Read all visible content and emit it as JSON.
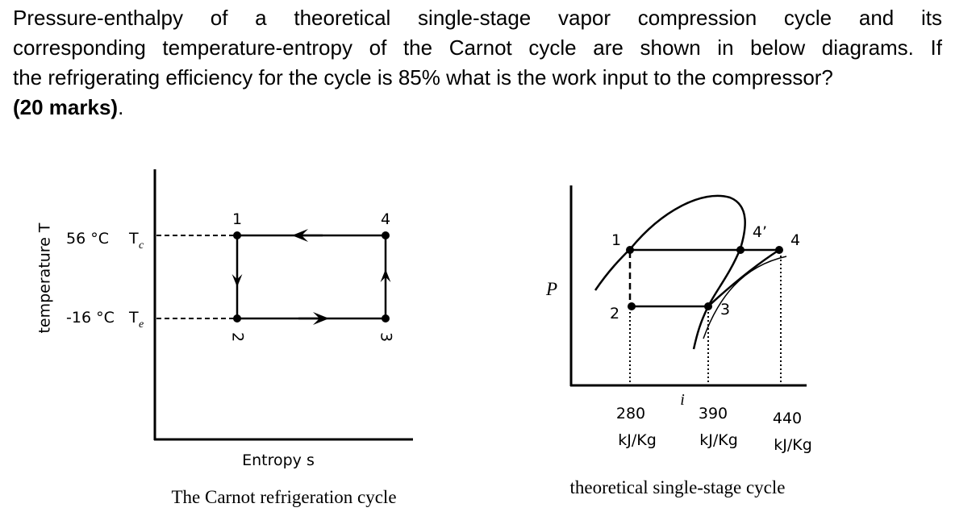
{
  "question": {
    "lines": [
      "Pressure-enthalpy of a theoretical single-stage vapor compression cycle and its",
      "corresponding temperature-entropy of the Carnot cycle are shown in below diagrams. If",
      "the refrigerating efficiency for the cycle is 85% what is the work input to the compressor?"
    ],
    "marks": "(20 marks)",
    "end": "."
  },
  "carnot_diagram": {
    "y_axis_label": "temperature T",
    "x_axis_label": "Entropy s",
    "caption": "The Carnot refrigeration cycle",
    "condensing": {
      "temperature": "56 °C",
      "symbol": "T",
      "subscript": "c"
    },
    "evaporating": {
      "temperature": "-16 °C",
      "symbol": "T",
      "subscript": "e"
    },
    "points": [
      "1",
      "4",
      "2",
      "3"
    ]
  },
  "ph_diagram": {
    "y_axis_label": "P",
    "x_axis_label": "i",
    "caption": "theoretical single-stage cycle",
    "points": [
      "1",
      "2",
      "3",
      "4’",
      "4"
    ],
    "enthalpies": [
      {
        "value": 280,
        "unit": "kJ/Kg"
      },
      {
        "value": 390,
        "unit": "kJ/Kg"
      },
      {
        "value": 440,
        "unit": "kJ/Kg"
      }
    ]
  }
}
